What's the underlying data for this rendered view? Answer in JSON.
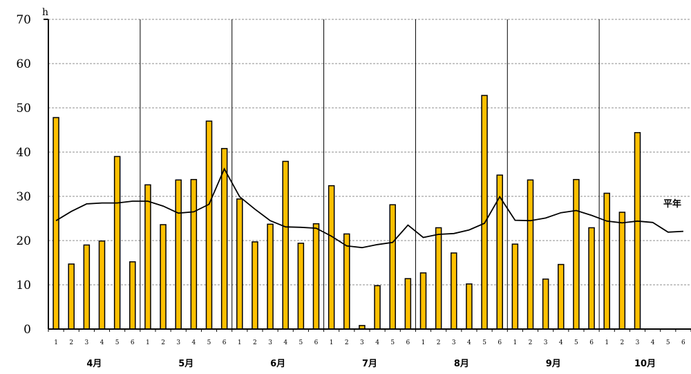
{
  "chart_data": {
    "type": "bar",
    "y_unit": "h",
    "ylim": [
      0,
      70
    ],
    "y_ticks": [
      "0",
      "10",
      "20",
      "30",
      "40",
      "50",
      "60",
      "70"
    ],
    "grid": true,
    "period_labels": [
      "1",
      "2",
      "3",
      "4",
      "5",
      "6"
    ],
    "months": [
      "4月",
      "5月",
      "6月",
      "7月",
      "8月",
      "9月",
      "10月"
    ],
    "series": [
      {
        "kind": "bar",
        "color": "#FFC000",
        "values": [
          47.8,
          14.7,
          19.0,
          19.9,
          39.0,
          15.2,
          32.6,
          23.6,
          33.7,
          33.8,
          47.0,
          40.8,
          29.4,
          19.7,
          23.7,
          37.9,
          19.4,
          23.8,
          32.4,
          21.5,
          0.8,
          9.8,
          28.1,
          11.4,
          12.7,
          22.9,
          17.2,
          10.2,
          52.8,
          34.8,
          19.2,
          33.7,
          11.3,
          14.6,
          33.8,
          22.9,
          30.7,
          26.4,
          44.4,
          null,
          null,
          null
        ]
      },
      {
        "kind": "line",
        "name": "平年",
        "color": "#000000",
        "values": [
          24.5,
          26.6,
          28.3,
          28.5,
          28.5,
          28.9,
          28.9,
          27.8,
          26.2,
          26.5,
          28.2,
          36.2,
          29.9,
          27.1,
          24.5,
          23.1,
          23.0,
          22.8,
          21.0,
          18.8,
          18.4,
          19.1,
          19.6,
          23.5,
          20.7,
          21.4,
          21.6,
          22.4,
          23.9,
          29.9,
          24.6,
          24.5,
          25.1,
          26.3,
          26.8,
          25.7,
          24.4,
          24.0,
          24.4,
          24.1,
          21.9,
          22.1
        ]
      }
    ]
  }
}
